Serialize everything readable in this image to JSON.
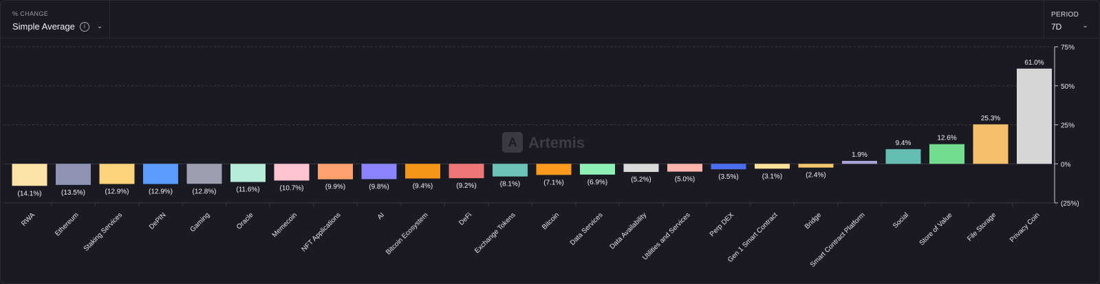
{
  "header": {
    "metric_caption": "% CHANGE",
    "metric_value": "Simple Average",
    "info_glyph": "i",
    "period_caption": "PERIOD",
    "period_value": "7D"
  },
  "watermark": "Artemis",
  "colors": {
    "background": "#1a1a22",
    "grid": "#3a3a44",
    "axis": "#cfcfd6"
  },
  "chart_data": {
    "type": "bar",
    "ylim": [
      -25,
      75
    ],
    "yticks": [
      75,
      50,
      25,
      0,
      -25
    ],
    "ytick_labels": [
      "75%",
      "50%",
      "25%",
      "0%",
      "(25%)"
    ],
    "grid": true,
    "categories": [
      "RWA",
      "Ethereum",
      "Staking Services",
      "DePIN",
      "Gaming",
      "Oracle",
      "Memecoin",
      "NFT Applications",
      "AI",
      "Bitcoin Ecosystem",
      "DeFi",
      "Exchange Tokens",
      "Bitcoin",
      "Data Services",
      "Data Availability",
      "Utilities and Services",
      "Perp DEX",
      "Gen 1 Smart Contract",
      "Bridge",
      "Smart Contract Platform",
      "Social",
      "Store of Value",
      "File Storage",
      "Privacy Coin"
    ],
    "values": [
      -14.1,
      -13.5,
      -12.9,
      -12.9,
      -12.8,
      -11.6,
      -10.7,
      -9.9,
      -9.8,
      -9.4,
      -9.2,
      -8.1,
      -7.1,
      -6.9,
      -5.2,
      -5.0,
      -3.5,
      -3.1,
      -2.4,
      1.9,
      9.4,
      12.6,
      25.3,
      61.0
    ],
    "labels": [
      "(14.1%)",
      "(13.5%)",
      "(12.9%)",
      "(12.9%)",
      "(12.8%)",
      "(11.6%)",
      "(10.7%)",
      "(9.9%)",
      "(9.8%)",
      "(9.4%)",
      "(9.2%)",
      "(8.1%)",
      "(7.1%)",
      "(6.9%)",
      "(5.2%)",
      "(5.0%)",
      "(3.5%)",
      "(3.1%)",
      "(2.4%)",
      "1.9%",
      "9.4%",
      "12.6%",
      "25.3%",
      "61.0%"
    ],
    "bar_colors": [
      "#fde3a7",
      "#8f94b5",
      "#fcd27a",
      "#5b9bff",
      "#9d9db0",
      "#b5ecd9",
      "#ffc4cf",
      "#ffa16e",
      "#8a84ff",
      "#f5961b",
      "#ec7776",
      "#6cc4b8",
      "#fb9a1e",
      "#8ef0b5",
      "#d9d9d9",
      "#ffb4ab",
      "#4a6df0",
      "#fde29a",
      "#f3c86c",
      "#a7a6d8",
      "#63bdb0",
      "#74dc8e",
      "#f4c06e",
      "#d6d6d6"
    ]
  }
}
